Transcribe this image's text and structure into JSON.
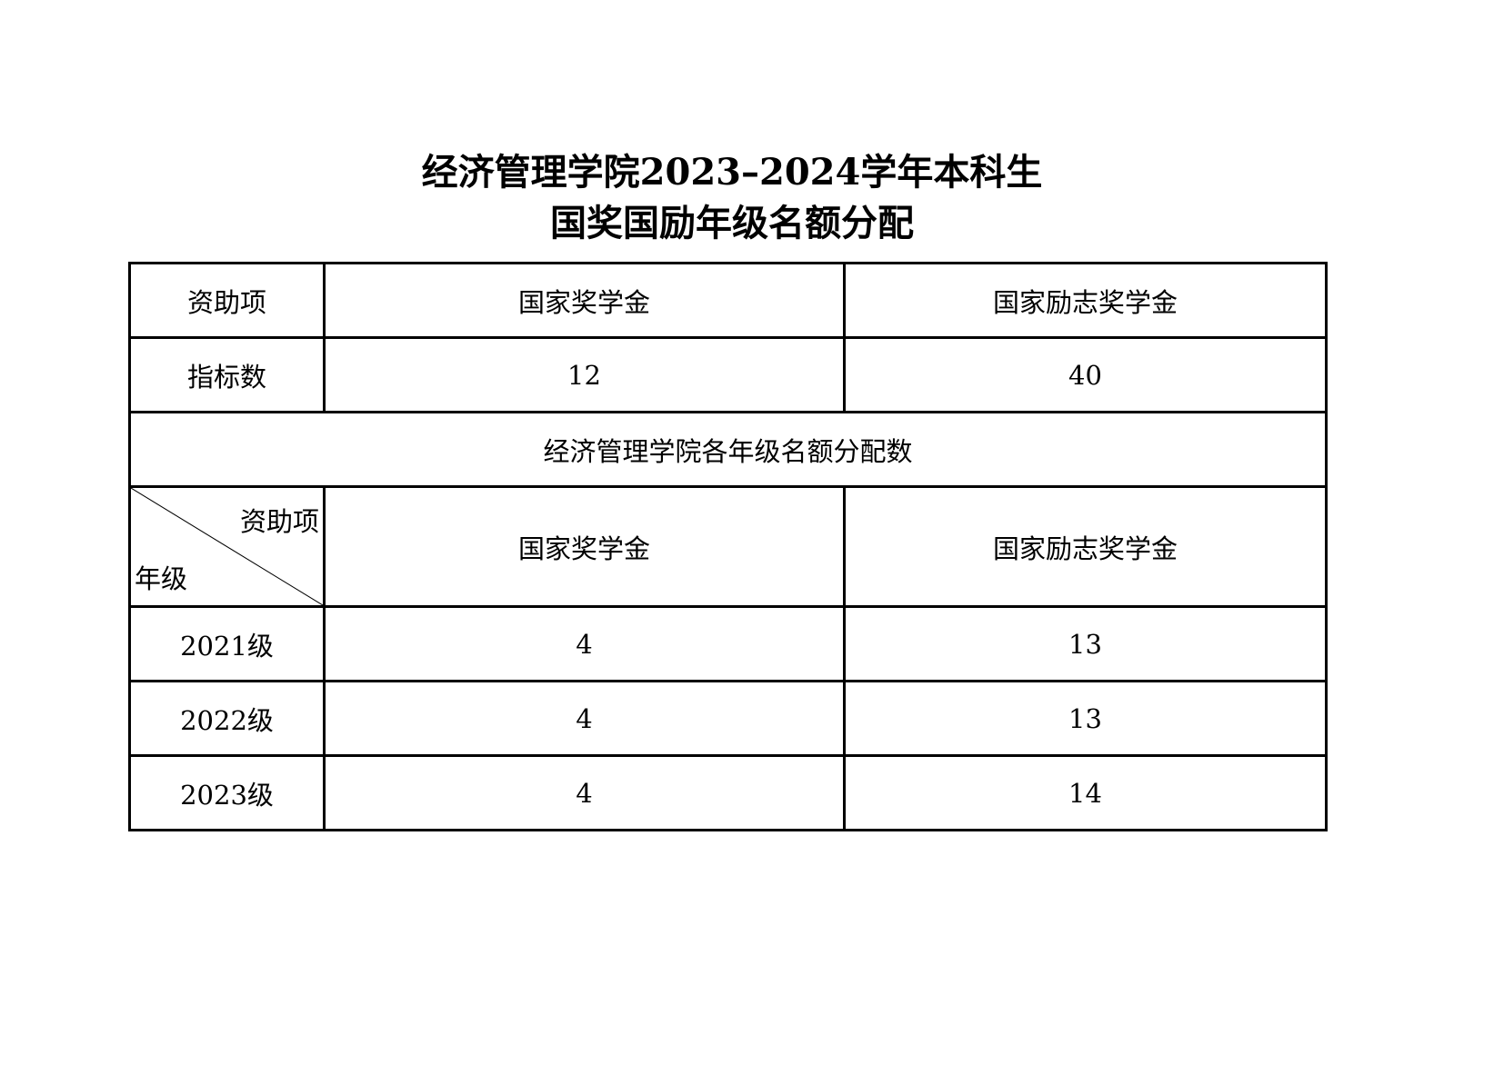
{
  "title": {
    "line1": "经济管理学院2023–2024学年本科生",
    "line2": "国奖国励年级名额分配"
  },
  "table": {
    "header": {
      "label": "资助项",
      "col1": "国家奖学金",
      "col2": "国家励志奖学金"
    },
    "quota": {
      "label": "指标数",
      "col1": "12",
      "col2": "40"
    },
    "section": "经济管理学院各年级名额分配数",
    "subheader": {
      "diag_top": "资助项",
      "diag_bottom": "年级",
      "col1": "国家奖学金",
      "col2": "国家励志奖学金"
    },
    "rows": [
      {
        "grade": "2021级",
        "col1": "4",
        "col2": "13"
      },
      {
        "grade": "2022级",
        "col1": "4",
        "col2": "13"
      },
      {
        "grade": "2023级",
        "col1": "4",
        "col2": "14"
      }
    ]
  }
}
